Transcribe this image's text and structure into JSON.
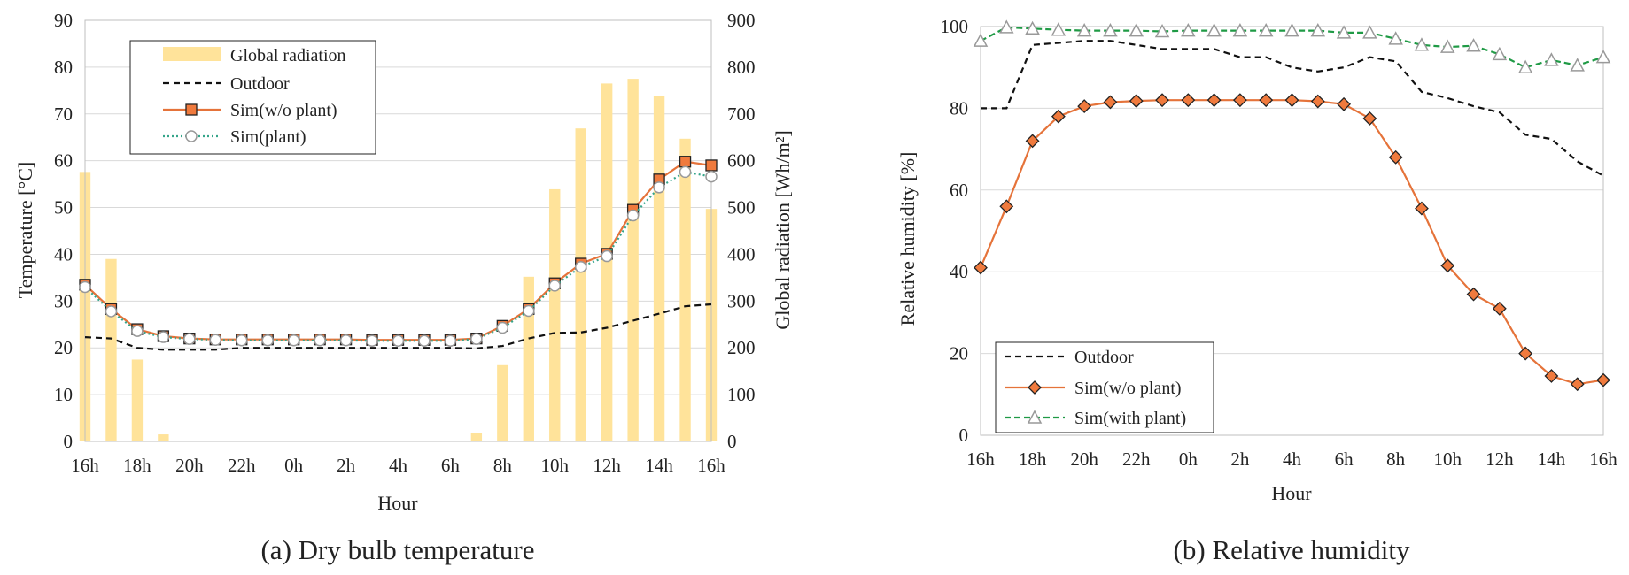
{
  "colors": {
    "radiation": "#ffe39a",
    "outdoor": "#111111",
    "sim_no_plant": "#e5733a",
    "sim_no_plant_marker_fill": "#f07a3d",
    "sim_plant_temp": "#35a58a",
    "sim_plant_rh": "#1f9a45",
    "marker_gray": "#999999",
    "grid": "#d9d9d9"
  },
  "chart_data": [
    {
      "type": "line",
      "caption": "(a) Dry bulb temperature",
      "xlabel": "Hour",
      "ylabel": "Temperature [°C]",
      "y2label": "Global radiation [Wh/m²]",
      "x_ticks": [
        "16h",
        "18h",
        "20h",
        "22h",
        "0h",
        "2h",
        "4h",
        "6h",
        "8h",
        "10h",
        "12h",
        "14h",
        "16h"
      ],
      "ylim": [
        0,
        90
      ],
      "y_ticks": [
        "0",
        "10",
        "20",
        "30",
        "40",
        "50",
        "60",
        "70",
        "80",
        "90"
      ],
      "y2lim": [
        0,
        900
      ],
      "y2_ticks": [
        "0",
        "100",
        "200",
        "300",
        "400",
        "500",
        "600",
        "700",
        "800",
        "900"
      ],
      "grid": true,
      "legend_position": "top-left",
      "hours": [
        "16h",
        "17h",
        "18h",
        "19h",
        "20h",
        "21h",
        "22h",
        "23h",
        "0h",
        "1h",
        "2h",
        "3h",
        "4h",
        "5h",
        "6h",
        "7h",
        "8h",
        "9h",
        "10h",
        "11h",
        "12h",
        "13h",
        "14h",
        "15h",
        "16h"
      ],
      "series": [
        {
          "name": "Global radiation",
          "kind": "bar",
          "axis": "right",
          "values": [
            576,
            390,
            175,
            15,
            0,
            0,
            0,
            0,
            0,
            0,
            0,
            0,
            0,
            0,
            0,
            18,
            163,
            352,
            539,
            669,
            765,
            775,
            739,
            647,
            497
          ]
        },
        {
          "name": "Outdoor",
          "kind": "line",
          "style": "dashed",
          "values": [
            22.3,
            22.0,
            20.0,
            19.6,
            19.6,
            19.6,
            20.0,
            20.0,
            20.0,
            20.0,
            20.0,
            20.0,
            20.0,
            20.0,
            20.0,
            19.9,
            20.4,
            22.0,
            23.2,
            23.3,
            24.3,
            25.8,
            27.3,
            28.9,
            29.3
          ]
        },
        {
          "name": "Sim(w/o plant)",
          "kind": "line",
          "style": "solid",
          "marker": "square",
          "values": [
            33.5,
            28.3,
            24.0,
            22.5,
            22.0,
            21.8,
            21.8,
            21.8,
            21.8,
            21.8,
            21.8,
            21.7,
            21.7,
            21.7,
            21.7,
            22.0,
            24.7,
            28.3,
            33.8,
            38.0,
            40.1,
            49.5,
            56.0,
            59.8,
            59.0
          ]
        },
        {
          "name": "Sim(plant)",
          "kind": "line",
          "style": "dotted",
          "marker": "circle",
          "values": [
            33.0,
            27.8,
            23.6,
            22.3,
            21.9,
            21.7,
            21.6,
            21.6,
            21.6,
            21.6,
            21.6,
            21.5,
            21.5,
            21.5,
            21.5,
            21.9,
            24.3,
            27.9,
            33.3,
            37.3,
            39.6,
            48.3,
            54.3,
            57.6,
            56.6
          ]
        }
      ]
    },
    {
      "type": "line",
      "caption": "(b) Relative humidity",
      "xlabel": "Hour",
      "ylabel": "Relative humidity [%]",
      "x_ticks": [
        "16h",
        "18h",
        "20h",
        "22h",
        "0h",
        "2h",
        "4h",
        "6h",
        "8h",
        "10h",
        "12h",
        "14h",
        "16h"
      ],
      "ylim": [
        0,
        100
      ],
      "y_ticks": [
        "0",
        "20",
        "40",
        "60",
        "80",
        "100"
      ],
      "grid": true,
      "legend_position": "bottom-left",
      "hours": [
        "16h",
        "17h",
        "18h",
        "19h",
        "20h",
        "21h",
        "22h",
        "23h",
        "0h",
        "1h",
        "2h",
        "3h",
        "4h",
        "5h",
        "6h",
        "7h",
        "8h",
        "9h",
        "10h",
        "11h",
        "12h",
        "13h",
        "14h",
        "15h",
        "16h"
      ],
      "series": [
        {
          "name": "Outdoor",
          "kind": "line",
          "style": "dashed",
          "values": [
            80,
            80,
            95.5,
            96,
            96.5,
            96.5,
            95.5,
            94.5,
            94.5,
            94.5,
            92.5,
            92.5,
            90,
            89,
            90,
            92.5,
            91.5,
            84,
            82.5,
            80.5,
            79,
            73.5,
            72.5,
            67,
            63.5
          ]
        },
        {
          "name": "Sim(w/o plant)",
          "kind": "line",
          "style": "solid",
          "marker": "diamond",
          "values": [
            41,
            56,
            72,
            78,
            80.5,
            81.5,
            81.8,
            82,
            82,
            82,
            82,
            82,
            82,
            81.7,
            81,
            77.5,
            68,
            55.5,
            41.5,
            34.5,
            31,
            20,
            14.5,
            12.5,
            13.5
          ]
        },
        {
          "name": "Sim(with plant)",
          "kind": "line",
          "style": "dashed",
          "marker": "triangle",
          "values": [
            96.5,
            99.8,
            99.5,
            99.2,
            99,
            99,
            99,
            98.8,
            99,
            99,
            99,
            99,
            99,
            99,
            98.5,
            98.5,
            97,
            95.5,
            95,
            95.3,
            93.2,
            90,
            91.8,
            90.5,
            92.5
          ]
        }
      ]
    }
  ]
}
